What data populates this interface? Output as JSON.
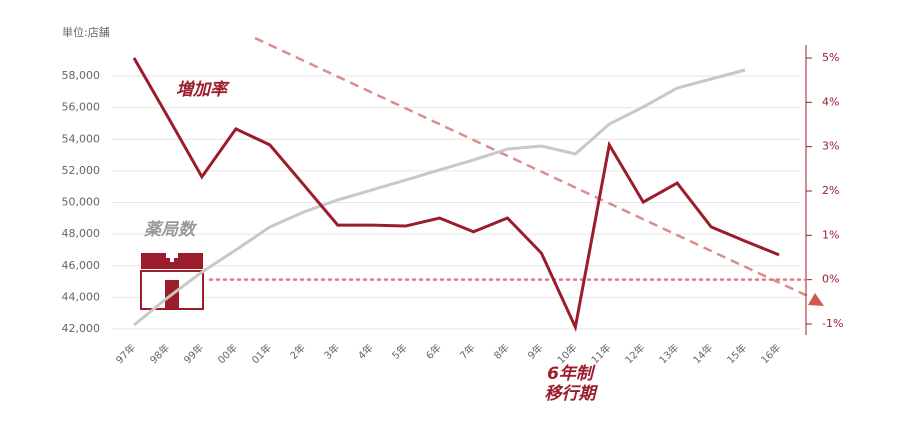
{
  "chart_data": {
    "type": "line",
    "unit_label": "単位:店舗",
    "annotations": {
      "rate": "増加率",
      "count": "薬局数",
      "period_line1": "6年制",
      "period_line2": "移行期"
    },
    "categories": [
      "97年",
      "98年",
      "99年",
      "00年",
      "01年",
      "2年",
      "3年",
      "4年",
      "5年",
      "6年",
      "7年",
      "8年",
      "9年",
      "10年",
      "11年",
      "12年",
      "13年",
      "14年",
      "15年",
      "16年"
    ],
    "series": [
      {
        "name": "薬局数",
        "color": "#c8c8c8",
        "axis": "y",
        "values": [
          42250,
          44000,
          45600,
          47000,
          48450,
          49400,
          50160,
          50790,
          51420,
          52060,
          52690,
          53380,
          53570,
          53070,
          54960,
          56040,
          57240,
          57810,
          58380,
          null
        ]
      },
      {
        "name": "増加率",
        "color": "#9b1c2a",
        "axis": "y2",
        "values": [
          5.0,
          3.67,
          2.32,
          3.4,
          3.04,
          2.14,
          1.23,
          1.23,
          1.21,
          1.39,
          1.08,
          1.39,
          0.6,
          -1.07,
          3.04,
          1.75,
          2.18,
          1.19,
          0.87,
          0.56
        ]
      }
    ],
    "ylim": [
      42000,
      58000
    ],
    "yticks": [
      {
        "value": 42000,
        "label": "42,000"
      },
      {
        "value": 44000,
        "label": "44,000"
      },
      {
        "value": 46000,
        "label": "46,000"
      },
      {
        "value": 48000,
        "label": "48,000"
      },
      {
        "value": 50000,
        "label": "50,000"
      },
      {
        "value": 52000,
        "label": "52,000"
      },
      {
        "value": 54000,
        "label": "54,000"
      },
      {
        "value": 56000,
        "label": "56,000"
      },
      {
        "value": 58000,
        "label": "58,000"
      }
    ],
    "y2lim": [
      -1,
      5
    ],
    "y2ticks": [
      {
        "value": -1,
        "label": "-1%"
      },
      {
        "value": 0,
        "label": "0%"
      },
      {
        "value": 1,
        "label": "1%"
      },
      {
        "value": 2,
        "label": "2%"
      },
      {
        "value": 3,
        "label": "3%"
      },
      {
        "value": 4,
        "label": "4%"
      },
      {
        "value": 5,
        "label": "5%"
      }
    ],
    "grid": true
  }
}
